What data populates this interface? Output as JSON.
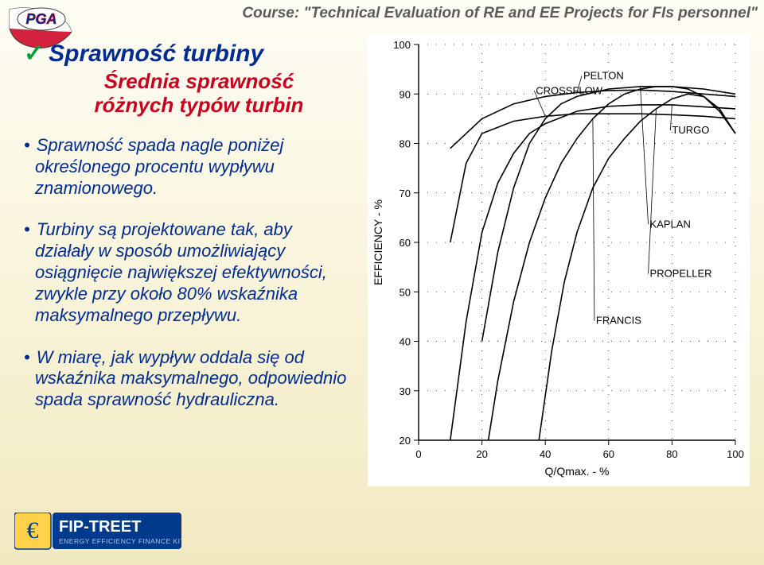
{
  "course_header": "Course: \"Technical Evaluation of RE and EE Projects for FIs personnel\"",
  "title_text": "Sprawność turbiny",
  "subtitle_text": "Średnia sprawność różnych typów turbin",
  "bullets": [
    "Sprawność spada nagle poniżej określonego procentu wypływu znamionowego.",
    "Turbiny są projektowane tak, aby działały w sposób umożliwiający osiągnięcie największej efektywności, zwykle przy około 80% wskaźnika maksymalnego przepływu.",
    "W miarę, jak wypływ oddala się od wskaźnika maksymalnego, odpowiednio spada sprawność hydrauliczna."
  ],
  "chart": {
    "type": "line",
    "xlabel": "Q/Qmax. - %",
    "ylabel": "EFFICIENCY - %",
    "xlim": [
      0,
      100
    ],
    "xtick_step": 20,
    "ylim": [
      20,
      100
    ],
    "ytick_step": 10,
    "axis_fontsize": 14,
    "tick_fontsize": 13,
    "background_color": "#ffffff",
    "axis_color": "#000000",
    "line_color": "#000000",
    "line_width": 1.6,
    "series": {
      "PELTON": {
        "label_xy": [
          52,
          93
        ],
        "points": [
          [
            10,
            79
          ],
          [
            20,
            85
          ],
          [
            30,
            88
          ],
          [
            40,
            89.5
          ],
          [
            50,
            90.3
          ],
          [
            60,
            90.7
          ],
          [
            70,
            90.8
          ],
          [
            80,
            90.5
          ],
          [
            90,
            90
          ],
          [
            100,
            89.5
          ]
        ]
      },
      "CROSSFLOW": {
        "label_xy": [
          37,
          90
        ],
        "points": [
          [
            10,
            60
          ],
          [
            15,
            76
          ],
          [
            20,
            82
          ],
          [
            30,
            84.5
          ],
          [
            40,
            85.5
          ],
          [
            50,
            86
          ],
          [
            60,
            86
          ],
          [
            70,
            86
          ],
          [
            80,
            85.8
          ],
          [
            90,
            85.5
          ],
          [
            100,
            85
          ]
        ]
      },
      "TURGO": {
        "label_xy": [
          80,
          82
        ],
        "points": [
          [
            10,
            20
          ],
          [
            15,
            44
          ],
          [
            20,
            62
          ],
          [
            25,
            72
          ],
          [
            30,
            78
          ],
          [
            35,
            82
          ],
          [
            40,
            84
          ],
          [
            50,
            86.5
          ],
          [
            60,
            87.5
          ],
          [
            70,
            87.8
          ],
          [
            80,
            87.8
          ],
          [
            90,
            87.4
          ],
          [
            100,
            87
          ]
        ]
      },
      "KAPLAN": {
        "label_xy": [
          73,
          63
        ],
        "points": [
          [
            20,
            40
          ],
          [
            25,
            58
          ],
          [
            30,
            71
          ],
          [
            35,
            80
          ],
          [
            40,
            85
          ],
          [
            45,
            88
          ],
          [
            50,
            89.5
          ],
          [
            60,
            91
          ],
          [
            70,
            91.5
          ],
          [
            80,
            91.5
          ],
          [
            90,
            91
          ],
          [
            100,
            90
          ]
        ]
      },
      "PROPELLER": {
        "label_xy": [
          73,
          53
        ],
        "points": [
          [
            38,
            20
          ],
          [
            42,
            38
          ],
          [
            46,
            52
          ],
          [
            50,
            62
          ],
          [
            55,
            71
          ],
          [
            60,
            77
          ],
          [
            65,
            81
          ],
          [
            70,
            84.5
          ],
          [
            75,
            87
          ],
          [
            80,
            89
          ],
          [
            85,
            90
          ],
          [
            90,
            89.5
          ],
          [
            95,
            87
          ],
          [
            100,
            82
          ]
        ]
      },
      "FRANCIS": {
        "label_xy": [
          56,
          43.5
        ],
        "points": [
          [
            22,
            20
          ],
          [
            25,
            32
          ],
          [
            30,
            48
          ],
          [
            35,
            60
          ],
          [
            40,
            69
          ],
          [
            45,
            76
          ],
          [
            50,
            81
          ],
          [
            55,
            85
          ],
          [
            60,
            88
          ],
          [
            65,
            90
          ],
          [
            70,
            91
          ],
          [
            75,
            91.5
          ],
          [
            80,
            91.5
          ],
          [
            85,
            91
          ],
          [
            90,
            89.5
          ],
          [
            95,
            86.5
          ],
          [
            100,
            82
          ]
        ]
      }
    },
    "label_fontsize": 13
  },
  "logo_tl": {
    "text_top": "PGA",
    "colors": {
      "flag_red": "#d4213d",
      "flag_white": "#ffffff",
      "border": "#3a3a3a",
      "text": "#002b8f",
      "text_stroke": "#c9001e"
    }
  },
  "logo_fip": {
    "brand": "FIP-TREET",
    "sub": "ENERGY EFFICIENCY FINANCE KIT",
    "euro": "€",
    "bg": "#003a8c",
    "text": "#ffffff",
    "euro_bg": "#ffd24a",
    "sub_color": "#b8c4e6"
  }
}
